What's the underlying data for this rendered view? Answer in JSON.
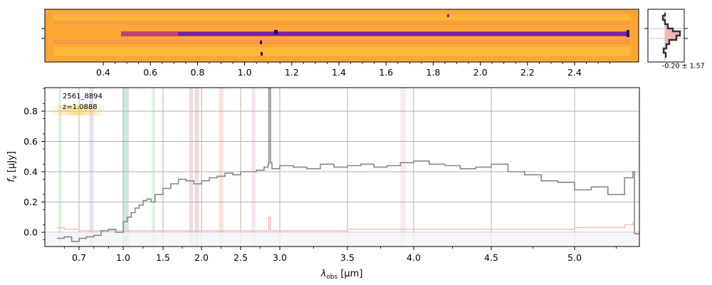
{
  "chart_data": [
    {
      "type": "heatmap",
      "panel": "2d-spectrum",
      "colormap": "plasma",
      "top_axis_ticks": [
        "0.4",
        "0.6",
        "0.8",
        "1.0",
        "1.2",
        "1.4",
        "1.6",
        "1.8",
        "2.0",
        "2.2",
        "2.4"
      ],
      "top_axis_tick_values": [
        0.4,
        0.6,
        0.8,
        1.0,
        1.2,
        1.4,
        1.6,
        1.8,
        2.0,
        2.2,
        2.4
      ],
      "note": ""
    },
    {
      "type": "line",
      "panel": "profile",
      "annotation": "-0.20 ± 1.57",
      "fill_color": "#f4b8b8",
      "line_color": "#333333"
    },
    {
      "type": "line",
      "panel": "1d-spectrum",
      "object_id": "2561_8894",
      "redshift_label": "z=1.0888",
      "xlabel_main": "λ",
      "xlabel_sub": "obs",
      "xlabel_unit": " [μm]",
      "ylabel_main": "f",
      "ylabel_sub": "ν",
      "ylabel_unit": " [μJy]",
      "ylim": [
        -0.09,
        0.96
      ],
      "xlim": [
        0.55,
        5.4
      ],
      "x_tick_values": [
        0.7,
        1.0,
        1.5,
        2.0,
        2.5,
        3.0,
        3.5,
        4.0,
        4.5,
        5.0
      ],
      "x_tick_labels": [
        "0.7",
        "1.0",
        "1.5",
        "2.0",
        "2.5",
        "3.0",
        "3.5",
        "4.0",
        "4.5",
        "5.0"
      ],
      "y_tick_values": [
        0.0,
        0.2,
        0.4,
        0.6,
        0.8
      ],
      "y_tick_labels": [
        "0.0",
        "0.2",
        "0.4",
        "0.6",
        "0.8"
      ],
      "grid": true,
      "bands": [
        {
          "x0": 0.56,
          "x1": 0.58,
          "color": "#cfe8cf"
        },
        {
          "x0": 0.77,
          "x1": 0.8,
          "color": "#dcd8f0"
        },
        {
          "x0": 1.0,
          "x1": 1.07,
          "color": "#b8ddd8"
        },
        {
          "x0": 1.36,
          "x1": 1.4,
          "color": "#d4ecd4"
        },
        {
          "x0": 1.84,
          "x1": 1.89,
          "color": "#e8cfcf"
        },
        {
          "x0": 1.91,
          "x1": 1.97,
          "color": "#e8cfcf"
        },
        {
          "x0": 2.22,
          "x1": 2.28,
          "color": "#f8d8cc"
        },
        {
          "x0": 2.64,
          "x1": 2.69,
          "color": "#f4d8ec"
        },
        {
          "x0": 3.9,
          "x1": 3.94,
          "color": "#f8e0f0"
        }
      ],
      "series": [
        {
          "role": "flux",
          "color": "#888888",
          "x": [
            0.55,
            0.6,
            0.65,
            0.7,
            0.75,
            0.8,
            0.85,
            0.9,
            0.95,
            1.0,
            1.05,
            1.1,
            1.15,
            1.2,
            1.25,
            1.3,
            1.35,
            1.4,
            1.5,
            1.6,
            1.7,
            1.8,
            1.9,
            2.0,
            2.1,
            2.2,
            2.3,
            2.4,
            2.5,
            2.6,
            2.7,
            2.8,
            2.85,
            2.86,
            2.88,
            2.9,
            3.0,
            3.1,
            3.2,
            3.3,
            3.4,
            3.5,
            3.6,
            3.7,
            3.8,
            3.9,
            4.0,
            4.1,
            4.2,
            4.3,
            4.4,
            4.5,
            4.6,
            4.7,
            4.8,
            4.9,
            5.0,
            5.1,
            5.2,
            5.3,
            5.35,
            5.36,
            5.4
          ],
          "y": [
            -0.04,
            -0.03,
            -0.06,
            -0.04,
            -0.03,
            -0.02,
            0.01,
            0.02,
            0.0,
            0.07,
            0.1,
            0.13,
            0.16,
            0.18,
            0.21,
            0.22,
            0.2,
            0.25,
            0.29,
            0.32,
            0.35,
            0.34,
            0.32,
            0.34,
            0.36,
            0.37,
            0.39,
            0.38,
            0.4,
            0.4,
            0.41,
            0.43,
            0.45,
            0.95,
            0.46,
            0.42,
            0.44,
            0.43,
            0.42,
            0.45,
            0.43,
            0.44,
            0.45,
            0.43,
            0.44,
            0.46,
            0.47,
            0.45,
            0.44,
            0.42,
            0.43,
            0.45,
            0.4,
            0.38,
            0.34,
            0.33,
            0.28,
            0.3,
            0.25,
            0.36,
            0.4,
            -0.01,
            -0.01
          ]
        },
        {
          "role": "uncertainty",
          "color": "#f5b8b8",
          "x": [
            0.55,
            0.6,
            0.7,
            0.8,
            1.0,
            1.2,
            1.5,
            2.0,
            2.5,
            2.85,
            2.86,
            2.88,
            3.0,
            3.5,
            4.0,
            4.5,
            5.0,
            5.3,
            5.35
          ],
          "y": [
            0.03,
            0.02,
            0.01,
            0.01,
            0.01,
            0.01,
            0.01,
            0.01,
            0.01,
            0.01,
            0.1,
            0.01,
            0.01,
            0.02,
            0.02,
            0.02,
            0.03,
            0.05,
            0.07
          ]
        }
      ]
    }
  ]
}
